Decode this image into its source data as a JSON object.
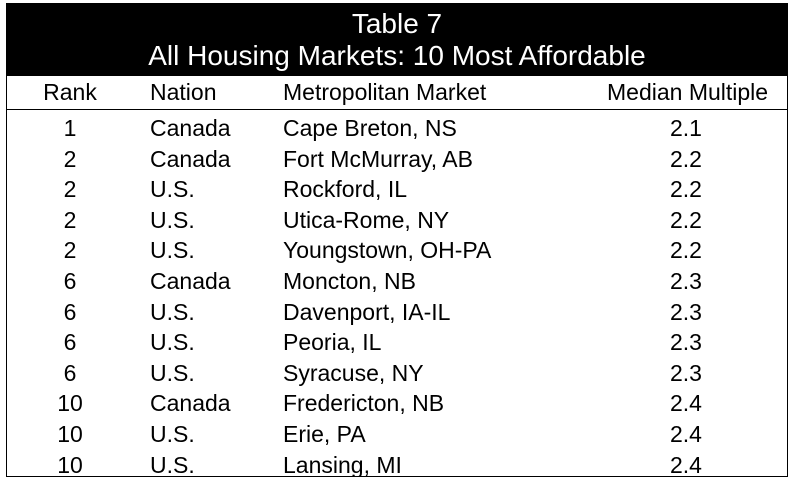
{
  "table": {
    "title_line1": "Table 7",
    "title_line2": "All Housing Markets: 10 Most Affordable",
    "headers": {
      "rank": "Rank",
      "nation": "Nation",
      "metro": "Metropolitan Market",
      "multiple": "Median Multiple"
    },
    "rows": [
      {
        "rank": "1",
        "nation": "Canada",
        "metro": "Cape Breton, NS",
        "multiple": "2.1"
      },
      {
        "rank": "2",
        "nation": "Canada",
        "metro": "Fort McMurray, AB",
        "multiple": "2.2"
      },
      {
        "rank": "2",
        "nation": "U.S.",
        "metro": "Rockford, IL",
        "multiple": "2.2"
      },
      {
        "rank": "2",
        "nation": "U.S.",
        "metro": "Utica-Rome, NY",
        "multiple": "2.2"
      },
      {
        "rank": "2",
        "nation": "U.S.",
        "metro": "Youngstown, OH-PA",
        "multiple": "2.2"
      },
      {
        "rank": "6",
        "nation": "Canada",
        "metro": "Moncton, NB",
        "multiple": "2.3"
      },
      {
        "rank": "6",
        "nation": "U.S.",
        "metro": "Davenport, IA-IL",
        "multiple": "2.3"
      },
      {
        "rank": "6",
        "nation": "U.S.",
        "metro": "Peoria, IL",
        "multiple": "2.3"
      },
      {
        "rank": "6",
        "nation": "U.S.",
        "metro": "Syracuse, NY",
        "multiple": "2.3"
      },
      {
        "rank": "10",
        "nation": "Canada",
        "metro": "Fredericton, NB",
        "multiple": "2.4"
      },
      {
        "rank": "10",
        "nation": "U.S.",
        "metro": "Erie, PA",
        "multiple": "2.4"
      },
      {
        "rank": "10",
        "nation": "U.S.",
        "metro": "Lansing, MI",
        "multiple": "2.4"
      }
    ]
  }
}
